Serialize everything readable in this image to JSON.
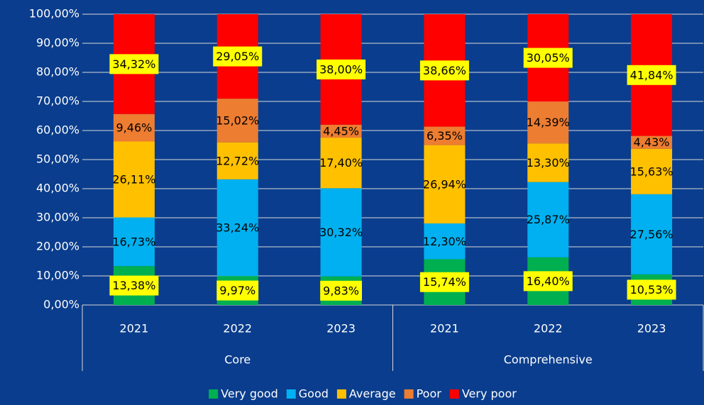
{
  "chart_data": {
    "type": "stacked_bar",
    "categories": [
      "2021",
      "2022",
      "2023",
      "2021",
      "2022",
      "2023"
    ],
    "groups": [
      "Core",
      "Comprehensive"
    ],
    "ylim": [
      0,
      100
    ],
    "yticks": [
      {
        "value": 0,
        "label": "0,00%"
      },
      {
        "value": 10,
        "label": "10,00%"
      },
      {
        "value": 20,
        "label": "20,00%"
      },
      {
        "value": 30,
        "label": "30,00%"
      },
      {
        "value": 40,
        "label": "40,00%"
      },
      {
        "value": 50,
        "label": "50,00%"
      },
      {
        "value": 60,
        "label": "60,00%"
      },
      {
        "value": 70,
        "label": "70,00%"
      },
      {
        "value": 80,
        "label": "80,00%"
      },
      {
        "value": 90,
        "label": "90,00%"
      },
      {
        "value": 100,
        "label": "100,00%"
      }
    ],
    "grid": true,
    "legend": "bottom",
    "series": [
      {
        "name": "Very good",
        "color": "#00b050",
        "label_background": "#ffff00",
        "values": [
          13.38,
          9.97,
          9.83,
          15.74,
          16.4,
          10.53
        ],
        "value_labels": [
          "13,38%",
          "9,97%",
          "9,83%",
          "15,74%",
          "16,40%",
          "10,53%"
        ]
      },
      {
        "name": "Good",
        "color": "#00b0f0",
        "values": [
          16.73,
          33.24,
          30.32,
          12.3,
          25.87,
          27.56
        ],
        "value_labels": [
          "16,73%",
          "33,24%",
          "30,32%",
          "12,30%",
          "25,87%",
          "27,56%"
        ]
      },
      {
        "name": "Average",
        "color": "#ffc000",
        "values": [
          26.11,
          12.72,
          17.4,
          26.94,
          13.3,
          15.63
        ],
        "value_labels": [
          "26,11%",
          "12,72%",
          "17,40%",
          "26,94%",
          "13,30%",
          "15,63%"
        ]
      },
      {
        "name": "Poor",
        "color": "#ed7d31",
        "values": [
          9.46,
          15.02,
          4.45,
          6.35,
          14.39,
          4.43
        ],
        "value_labels": [
          "9,46%",
          "15,02%",
          "4,45%",
          "6,35%",
          "14,39%",
          "4,43%"
        ]
      },
      {
        "name": "Very poor",
        "color": "#ff0000",
        "label_background": "#ffff00",
        "values": [
          34.32,
          29.05,
          38.0,
          38.66,
          30.05,
          41.84
        ],
        "value_labels": [
          "34,32%",
          "29,05%",
          "38,00%",
          "38,66%",
          "30,05%",
          "41,84%"
        ]
      }
    ]
  }
}
